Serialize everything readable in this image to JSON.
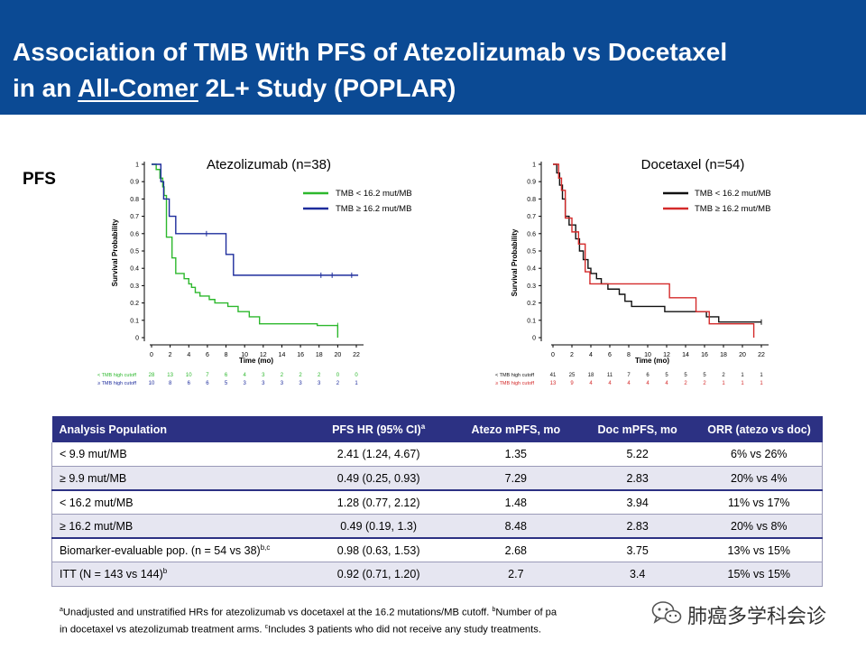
{
  "header": {
    "title_line1": "Association of TMB With PFS of Atezolizumab vs Docetaxel",
    "title_line2_pre": "in an ",
    "title_line2_underlined": "All-Comer",
    "title_line2_post": " 2L+ Study (POPLAR)"
  },
  "section_label": "PFS",
  "chart_data": [
    {
      "type": "line",
      "title": "Atezolizumab (n=38)",
      "xlabel": "Time (mo)",
      "ylabel": "Survival Probability",
      "xlim": [
        0,
        22
      ],
      "ylim": [
        0,
        1
      ],
      "xticks": [
        "0",
        "2",
        "4",
        "6",
        "8",
        "10",
        "12",
        "14",
        "16",
        "18",
        "20",
        "22"
      ],
      "yticks": [
        "0",
        "0.1",
        "0.2",
        "0.3",
        "0.4",
        "0.5",
        "0.6",
        "0.7",
        "0.8",
        "0.9",
        "1"
      ],
      "legend_position": "top-right",
      "series": [
        {
          "name": "TMB < 16.2 mut/MB",
          "color": "#2db82d",
          "x": [
            0,
            0.5,
            0.9,
            1.2,
            1.35,
            1.6,
            2.2,
            2.6,
            3.5,
            4.0,
            4.3,
            4.7,
            5.2,
            6.2,
            6.8,
            8.2,
            9.3,
            10.5,
            11.6,
            17.8,
            20.0
          ],
          "y": [
            1.0,
            0.97,
            0.92,
            0.87,
            0.82,
            0.58,
            0.46,
            0.37,
            0.34,
            0.31,
            0.29,
            0.26,
            0.24,
            0.22,
            0.2,
            0.18,
            0.15,
            0.12,
            0.08,
            0.07,
            0.0
          ],
          "censor_x": [
            20.0
          ],
          "censor_y": [
            0.07
          ]
        },
        {
          "name": "TMB ≥ 16.2 mut/MB",
          "color": "#1d2c9c",
          "x": [
            0,
            1.0,
            1.3,
            1.9,
            2.6,
            8.0,
            8.8,
            22.2
          ],
          "y": [
            1.0,
            0.9,
            0.8,
            0.7,
            0.6,
            0.48,
            0.36,
            0.36
          ],
          "censor_x": [
            5.9,
            18.2,
            19.4,
            21.5
          ],
          "censor_y": [
            0.6,
            0.36,
            0.36,
            0.36
          ]
        }
      ],
      "risk_table": {
        "times": [
          "0",
          "2",
          "4",
          "6",
          "8",
          "10",
          "12",
          "14",
          "16",
          "18",
          "20",
          "22"
        ],
        "rows": [
          {
            "label": "< TMB high cutoff",
            "color": "#2db82d",
            "values": [
              "28",
              "13",
              "10",
              "7",
              "6",
              "4",
              "3",
              "2",
              "2",
              "2",
              "0",
              "0"
            ]
          },
          {
            "label": "≥ TMB high cutoff",
            "color": "#1d2c9c",
            "values": [
              "10",
              "8",
              "6",
              "6",
              "5",
              "3",
              "3",
              "3",
              "3",
              "3",
              "2",
              "1"
            ]
          }
        ]
      }
    },
    {
      "type": "line",
      "title": "Docetaxel (n=54)",
      "xlabel": "Time (mo)",
      "ylabel": "Survival Probability",
      "xlim": [
        0,
        22
      ],
      "ylim": [
        0,
        1
      ],
      "xticks": [
        "0",
        "2",
        "4",
        "6",
        "8",
        "10",
        "12",
        "14",
        "16",
        "18",
        "20",
        "22"
      ],
      "yticks": [
        "0",
        "0.1",
        "0.2",
        "0.3",
        "0.4",
        "0.5",
        "0.6",
        "0.7",
        "0.8",
        "0.9",
        "1"
      ],
      "legend_position": "top-right",
      "series": [
        {
          "name": "TMB < 16.2 mut/MB",
          "color": "#111111",
          "x": [
            0,
            0.4,
            0.7,
            1.0,
            1.3,
            1.7,
            2.4,
            2.8,
            3.2,
            3.7,
            4.0,
            4.6,
            5.1,
            5.8,
            7.0,
            7.6,
            8.3,
            11.8,
            16.2,
            17.5,
            22.0
          ],
          "y": [
            1.0,
            0.95,
            0.88,
            0.8,
            0.7,
            0.65,
            0.57,
            0.5,
            0.45,
            0.4,
            0.37,
            0.34,
            0.31,
            0.28,
            0.25,
            0.21,
            0.18,
            0.15,
            0.12,
            0.09,
            0.09
          ],
          "censor_x": [
            22.0
          ],
          "censor_y": [
            0.09
          ]
        },
        {
          "name": "TMB ≥ 16.2 mut/MB",
          "color": "#d42a2a",
          "x": [
            0,
            0.6,
            0.9,
            1.3,
            2.0,
            2.7,
            3.4,
            3.9,
            12.3,
            15.1,
            16.5,
            21.2
          ],
          "y": [
            1.0,
            0.92,
            0.85,
            0.69,
            0.61,
            0.54,
            0.38,
            0.31,
            0.23,
            0.15,
            0.08,
            0.0
          ],
          "censor_x": [],
          "censor_y": []
        }
      ],
      "risk_table": {
        "times": [
          "0",
          "2",
          "4",
          "6",
          "8",
          "10",
          "12",
          "14",
          "16",
          "18",
          "20",
          "22"
        ],
        "rows": [
          {
            "label": "< TMB high cutoff",
            "color": "#111111",
            "values": [
              "41",
              "25",
              "18",
              "11",
              "7",
              "6",
              "5",
              "5",
              "5",
              "2",
              "1",
              "1"
            ]
          },
          {
            "label": "≥ TMB high cutoff",
            "color": "#d42a2a",
            "values": [
              "13",
              "9",
              "4",
              "4",
              "4",
              "4",
              "4",
              "2",
              "2",
              "1",
              "1",
              "1"
            ]
          }
        ]
      }
    }
  ],
  "table": {
    "headers": [
      "Analysis Population",
      "PFS HR (95% CI)",
      "Atezo mPFS, mo",
      "Doc mPFS, mo",
      "ORR (atezo vs doc)"
    ],
    "header_sup": "a",
    "rows": [
      {
        "population": "< 9.9 mut/MB",
        "sup": "",
        "hr": "2.41 (1.24, 4.67)",
        "atezo": "1.35",
        "doc": "5.22",
        "orr": "6% vs 26%"
      },
      {
        "population": "≥ 9.9 mut/MB",
        "sup": "",
        "hr": "0.49 (0.25, 0.93)",
        "atezo": "7.29",
        "doc": "2.83",
        "orr": "20% vs 4%"
      },
      {
        "population": "< 16.2 mut/MB",
        "sup": "",
        "hr": "1.28 (0.77, 2.12)",
        "atezo": "1.48",
        "doc": "3.94",
        "orr": "11% vs 17%"
      },
      {
        "population": "≥ 16.2 mut/MB",
        "sup": "",
        "hr": "0.49 (0.19, 1.3)",
        "atezo": "8.48",
        "doc": "2.83",
        "orr": "20% vs 8%"
      },
      {
        "population": "Biomarker-evaluable  pop. (n = 54 vs 38)",
        "sup": "b,c",
        "hr": "0.98 (0.63, 1.53)",
        "atezo": "2.68",
        "doc": "3.75",
        "orr": "13% vs 15%"
      },
      {
        "population": "ITT  (N = 143 vs 144)",
        "sup": "b",
        "hr": "0.92 (0.71, 1.20)",
        "atezo": "2.7",
        "doc": "3.4",
        "orr": "15% vs 15%"
      }
    ]
  },
  "footnotes": {
    "a_mark": "a",
    "a_text": "Unadjusted and unstratified HRs for atezolizumab vs docetaxel at the 16.2 mutations/MB cutoff. ",
    "b_mark": "b",
    "b_text": "Number of pa",
    "line2": "in docetaxel vs atezolizumab treatment arms. ",
    "c_mark": "c",
    "c_text": "Includes 3 patients who did not receive any study treatments."
  },
  "watermark": {
    "text": "肺癌多学科会诊",
    "icon": "wechat-icon"
  }
}
